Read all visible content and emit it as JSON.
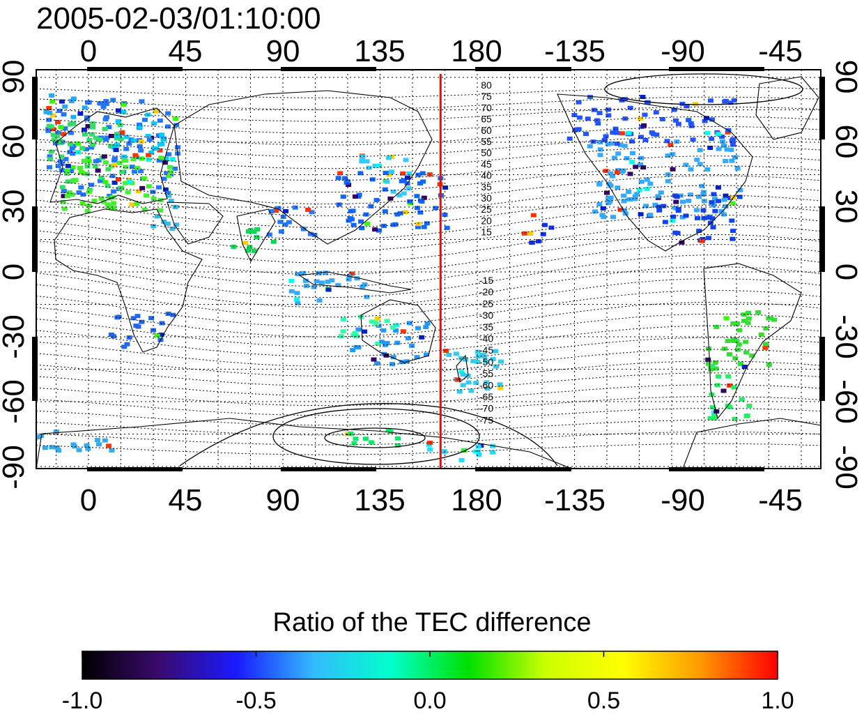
{
  "title": "2005-02-03/01:10:00",
  "map": {
    "lon_ticks_top": [
      "0",
      "45",
      "90",
      "135",
      "180",
      "-135",
      "-90",
      "-45"
    ],
    "lon_ticks_bottom": [
      "0",
      "45",
      "90",
      "135",
      "180",
      "-135",
      "-90",
      "-45"
    ],
    "lat_ticks_left": [
      "90",
      "60",
      "30",
      "0",
      "-30",
      "-60",
      "-90"
    ],
    "lat_ticks_right": [
      "90",
      "60",
      "30",
      "0",
      "-30",
      "-60",
      "-90"
    ],
    "terminator_longitude": 163,
    "terminator_color": "#dd1111",
    "contour_labels_north": [
      "80",
      "75",
      "70",
      "65",
      "60",
      "55",
      "50",
      "45",
      "40",
      "35",
      "30",
      "25",
      "20",
      "15"
    ],
    "contour_labels_south": [
      "-15",
      "-20",
      "-25",
      "-30",
      "-35",
      "-40",
      "-45",
      "-50",
      "-55",
      "-60",
      "-65",
      "-70",
      "-75"
    ]
  },
  "colorbar": {
    "title": "Ratio of the TEC difference",
    "tick_labels": [
      "-1.0",
      "-0.5",
      "0.0",
      "0.5",
      "1.0"
    ],
    "range": [
      -1.0,
      1.0
    ],
    "colors": [
      "#000000",
      "#3a0a6e",
      "#1a1aff",
      "#33bbff",
      "#00ffcc",
      "#00e000",
      "#ccff00",
      "#ffff00",
      "#ff9900",
      "#ff0000"
    ]
  }
}
